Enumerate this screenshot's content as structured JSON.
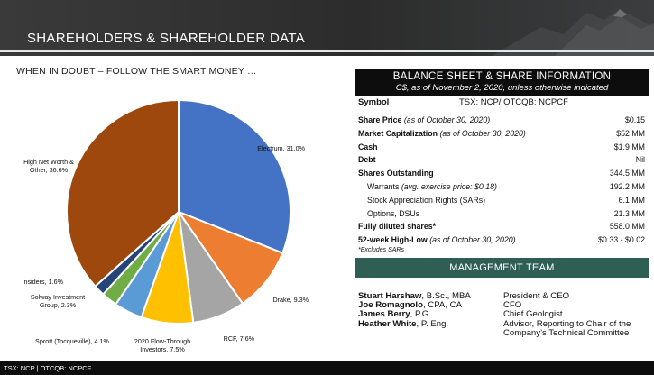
{
  "header": {
    "title": "SHAREHOLDERS & SHAREHOLDER DATA"
  },
  "subtitle": "WHEN IN DOUBT – FOLLOW THE SMART MONEY …",
  "chart_data": {
    "type": "pie",
    "slices": [
      {
        "label": "Electrum, 31.0%",
        "value": 31.0,
        "color": "#4472c4"
      },
      {
        "label": "Drake, 9.3%",
        "value": 9.3,
        "color": "#ed7d31"
      },
      {
        "label": "RCF, 7.6%",
        "value": 7.6,
        "color": "#a5a5a5"
      },
      {
        "label": "2020 Flow-Through Investors, 7.5%",
        "value": 7.5,
        "color": "#ffc000"
      },
      {
        "label": "Sprott (Tocqueville), 4.1%",
        "value": 4.1,
        "color": "#5b9bd5"
      },
      {
        "label": "Solway Investment Group, 2.3%",
        "value": 2.3,
        "color": "#70ad47"
      },
      {
        "label": "Insiders, 1.6%",
        "value": 1.6,
        "color": "#264478"
      },
      {
        "label": "High Net Worth & Other, 36.6%",
        "value": 36.6,
        "color": "#9e480e"
      }
    ]
  },
  "balance_sheet": {
    "title": "BALANCE SHEET & SHARE INFORMATION",
    "subtitle": "C$, as of November 2, 2020, unless otherwise indicated",
    "symbol_label": "Symbol",
    "symbol_value": "TSX: NCP/ OTCQB: NCPCF",
    "rows": [
      {
        "label": "Share Price",
        "note": "(as of October 30, 2020)",
        "value": "$0.15"
      },
      {
        "label": "Market Capitalization",
        "note": "(as of October 30, 2020)",
        "value": "$52 MM"
      },
      {
        "label": "Cash",
        "note": "",
        "value": "$1.9 MM"
      },
      {
        "label": "Debt",
        "note": "",
        "value": "Nil"
      },
      {
        "label": "Shares Outstanding",
        "note": "",
        "value": "344.5 MM"
      },
      {
        "label": "Warrants",
        "note": "(avg. exercise price: $0.18)",
        "value": "192.2 MM"
      },
      {
        "label": "Stock Appreciation Rights (SARs)",
        "note": "",
        "value": "6.1 MM"
      },
      {
        "label": "Options, DSUs",
        "note": "",
        "value": "21.3 MM"
      },
      {
        "label": "Fully diluted shares*",
        "note": "",
        "value": "558.0 MM"
      },
      {
        "label": "52-week High-Low",
        "note": "(as of October 30, 2020)",
        "value": "$0.33 - $0.02"
      }
    ],
    "footnote": "*Excludes SARs"
  },
  "management": {
    "title": "MANAGEMENT TEAM",
    "members": [
      {
        "name": "Stuart Harshaw",
        "credentials": ", B.Sc., MBA",
        "role": "President & CEO"
      },
      {
        "name": "Joe Romagnolo",
        "credentials": ", CPA, CA",
        "role": "CFO"
      },
      {
        "name": "James Berry",
        "credentials": ", P.G.",
        "role": "Chief Geologist"
      },
      {
        "name": "Heather White",
        "credentials": ", P. Eng.",
        "role": "Advisor, Reporting to Chair of the"
      },
      {
        "name": "",
        "credentials": "",
        "role": "Company’s Technical Committee"
      }
    ]
  },
  "footer": {
    "text": "TSX: NCP  |  OTCQB: NCPCF"
  }
}
